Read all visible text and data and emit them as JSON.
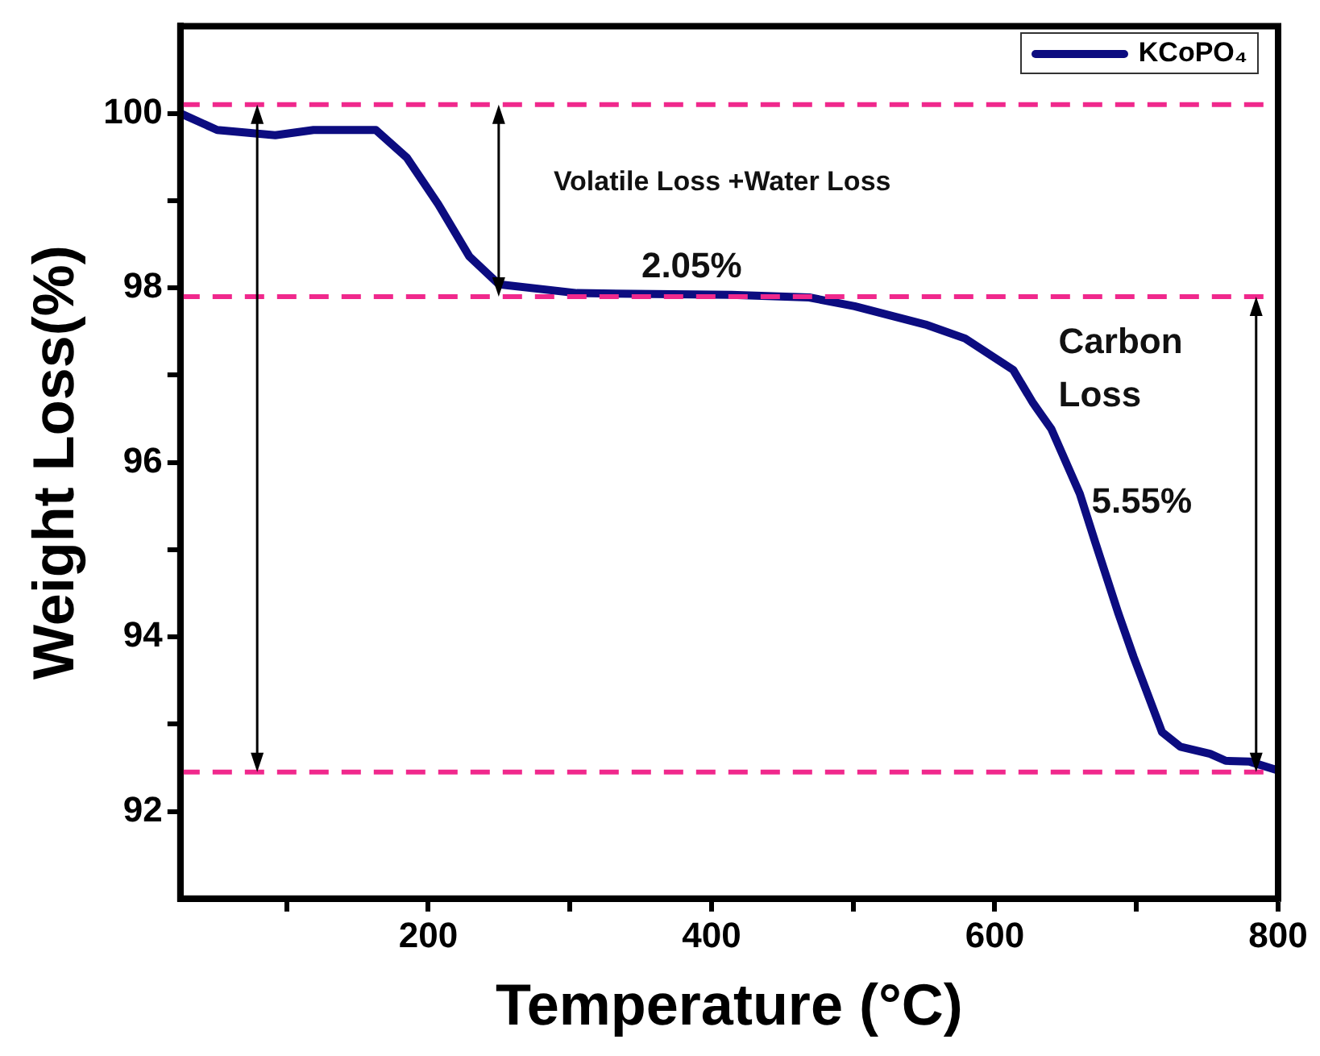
{
  "chart_data": {
    "type": "line",
    "xlabel": "Temperature (°C)",
    "ylabel": "Weight Loss(%)",
    "x": [
      25,
      51,
      92,
      119,
      163,
      185,
      207,
      229,
      250,
      305,
      414,
      469,
      501,
      551,
      579,
      613,
      627,
      640,
      660,
      671,
      687,
      698,
      718,
      731,
      752,
      763,
      780,
      800
    ],
    "series": [
      {
        "name": "KCoPO₄",
        "color": "#0c0c80",
        "values": [
          100.0,
          99.81,
          99.75,
          99.81,
          99.81,
          99.49,
          98.96,
          98.36,
          98.04,
          97.94,
          97.92,
          97.89,
          97.79,
          97.58,
          97.42,
          97.06,
          96.68,
          96.38,
          95.64,
          95.08,
          94.28,
          93.77,
          92.91,
          92.74,
          92.66,
          92.58,
          92.57,
          92.47
        ]
      }
    ],
    "xlim": [
      25,
      800
    ],
    "xticks": [
      {
        "value": 100,
        "label": null
      },
      200,
      {
        "value": 300,
        "label": null
      },
      400,
      {
        "value": 500,
        "label": null
      },
      600,
      {
        "value": 700,
        "label": null
      },
      800
    ],
    "ylim": [
      91,
      101
    ],
    "yticks": [
      92,
      {
        "value": 93,
        "label": null
      },
      94,
      {
        "value": 95,
        "label": null
      },
      96,
      {
        "value": 97,
        "label": null
      },
      98,
      {
        "value": 99,
        "label": null
      },
      100
    ],
    "ref_lines": [
      {
        "axis": "y",
        "value": 100.1,
        "color": "#f0288c",
        "line_style": "dashed"
      },
      {
        "axis": "y",
        "value": 97.9,
        "color": "#f0288c",
        "line_style": "dashed"
      },
      {
        "axis": "y",
        "value": 92.45,
        "color": "#f0288c",
        "line_style": "dashed"
      }
    ],
    "annotations": [
      "Volatile Loss +Water Loss",
      "2.05%",
      "Carbon Loss",
      "5.55%"
    ],
    "grid": false,
    "legend": "top right",
    "marker": "none",
    "line_style": "solid"
  }
}
